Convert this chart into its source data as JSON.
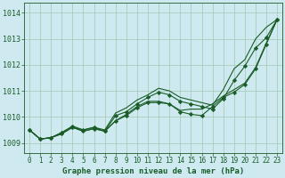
{
  "title": "Graphe pression niveau de la mer (hPa)",
  "background_color": "#ceeaf0",
  "grid_color": "#a8cdb8",
  "line_color": "#1a5c28",
  "x_ticks": [
    0,
    1,
    2,
    3,
    4,
    5,
    6,
    7,
    8,
    9,
    10,
    11,
    12,
    13,
    14,
    15,
    16,
    17,
    18,
    19,
    20,
    21,
    22,
    23
  ],
  "ylim": [
    1008.6,
    1014.4
  ],
  "yticks": [
    1009,
    1010,
    1011,
    1012,
    1013,
    1014
  ],
  "series": [
    {
      "data": [
        1009.5,
        1009.15,
        1009.2,
        1009.4,
        1009.6,
        1009.5,
        1009.6,
        1009.5,
        1010.15,
        1010.35,
        1010.65,
        1010.85,
        1011.1,
        1011.0,
        1010.75,
        1010.65,
        1010.55,
        1010.45,
        1011.05,
        1011.85,
        1012.2,
        1013.0,
        1013.45,
        1013.75
      ],
      "marker": null
    },
    {
      "data": [
        1009.5,
        1009.15,
        1009.2,
        1009.4,
        1009.65,
        1009.5,
        1009.6,
        1009.45,
        1010.05,
        1010.2,
        1010.5,
        1010.75,
        1010.95,
        1010.85,
        1010.6,
        1010.5,
        1010.4,
        1010.3,
        1010.7,
        1011.4,
        1011.95,
        1012.65,
        1013.05,
        1013.75
      ],
      "marker": "D"
    },
    {
      "data": [
        1009.5,
        1009.15,
        1009.2,
        1009.35,
        1009.6,
        1009.45,
        1009.55,
        1009.45,
        1009.85,
        1010.1,
        1010.4,
        1010.6,
        1010.6,
        1010.5,
        1010.25,
        1010.3,
        1010.3,
        1010.5,
        1010.8,
        1011.05,
        1011.3,
        1011.9,
        1012.85,
        1013.75
      ],
      "marker": null
    },
    {
      "data": [
        1009.5,
        1009.15,
        1009.2,
        1009.35,
        1009.6,
        1009.45,
        1009.55,
        1009.45,
        1009.85,
        1010.05,
        1010.35,
        1010.55,
        1010.55,
        1010.5,
        1010.2,
        1010.1,
        1010.05,
        1010.4,
        1010.75,
        1010.95,
        1011.25,
        1011.85,
        1012.8,
        1013.75
      ],
      "marker": "D"
    }
  ],
  "xlabel_fontsize": 6.5,
  "tick_fontsize": 5.5
}
